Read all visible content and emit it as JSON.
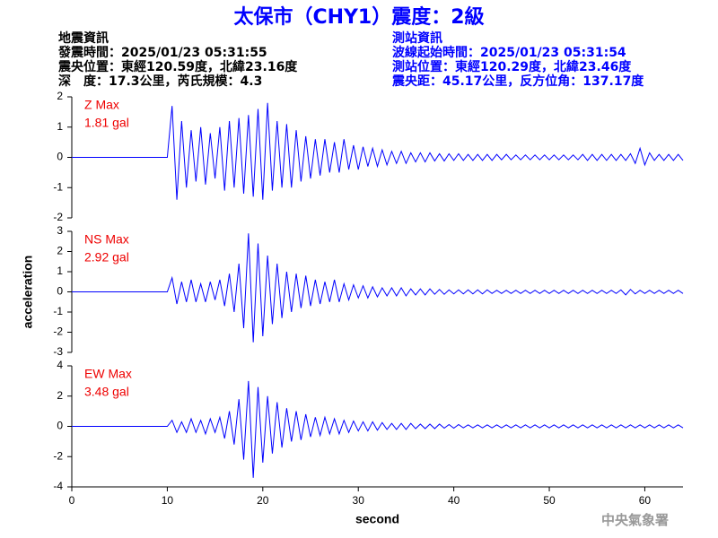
{
  "header": {
    "title": "太保市（CHY1）震度：2級",
    "left": [
      "地震資訊",
      "發震時間：2025/01/23 05:31:55",
      "震央位置：東經120.59度，北緯23.16度",
      "深　度：17.3公里，芮氏規模：4.3"
    ],
    "right": [
      "測站資訊",
      "波線起始時間：2025/01/23 05:31:54",
      "測站位置：東經120.29度，北緯23.46度",
      "震央距：45.17公里，反方位角：137.17度"
    ]
  },
  "footer": "中央氣象署",
  "chart_data": [
    {
      "type": "line",
      "annotations": [
        "Z Max",
        "1.81 gal"
      ],
      "xlim": [
        0,
        64
      ],
      "ylim": [
        -2,
        2
      ],
      "yticks": [
        -2,
        -1,
        0,
        1,
        2
      ],
      "x": [
        0,
        0.5,
        1,
        1.5,
        2,
        2.5,
        3,
        3.5,
        4,
        4.5,
        5,
        5.5,
        6,
        6.5,
        7,
        7.5,
        8,
        8.5,
        9,
        9.5,
        10,
        10.5,
        11,
        11.5,
        12,
        12.5,
        13,
        13.5,
        14,
        14.5,
        15,
        15.5,
        16,
        16.5,
        17,
        17.5,
        18,
        18.5,
        19,
        19.5,
        20,
        20.5,
        21,
        21.5,
        22,
        22.5,
        23,
        23.5,
        24,
        24.5,
        25,
        25.5,
        26,
        26.5,
        27,
        27.5,
        28,
        28.5,
        29,
        29.5,
        30,
        30.5,
        31,
        31.5,
        32,
        32.5,
        33,
        33.5,
        34,
        34.5,
        35,
        35.5,
        36,
        36.5,
        37,
        37.5,
        38,
        38.5,
        39,
        39.5,
        40,
        40.5,
        41,
        41.5,
        42,
        42.5,
        43,
        43.5,
        44,
        44.5,
        45,
        45.5,
        46,
        46.5,
        47,
        47.5,
        48,
        48.5,
        49,
        49.5,
        50,
        50.5,
        51,
        51.5,
        52,
        52.5,
        53,
        53.5,
        54,
        54.5,
        55,
        55.5,
        56,
        56.5,
        57,
        57.5,
        58,
        58.5,
        59,
        59.5,
        60,
        60.5,
        61,
        61.5,
        62,
        62.5,
        63,
        63.5,
        64
      ],
      "series": [
        {
          "color": "#0000ff",
          "values": [
            0,
            0,
            0,
            0,
            0,
            0,
            0,
            0,
            0,
            0,
            0,
            0,
            0,
            0,
            0,
            0,
            0,
            0,
            0,
            0,
            0,
            1.7,
            -1.4,
            1.2,
            -1.0,
            0.9,
            -0.8,
            1.0,
            -0.9,
            0.8,
            -0.7,
            1.0,
            -1.1,
            1.2,
            -1.0,
            1.3,
            -1.2,
            1.4,
            -1.3,
            1.6,
            -1.4,
            1.8,
            -1.1,
            1.2,
            -1.0,
            1.1,
            -1.0,
            0.9,
            -0.8,
            0.7,
            -0.7,
            0.6,
            -0.6,
            0.6,
            -0.5,
            0.5,
            -0.5,
            0.6,
            -0.4,
            0.4,
            -0.4,
            0.35,
            -0.3,
            0.3,
            -0.3,
            0.25,
            -0.25,
            0.2,
            -0.2,
            0.2,
            -0.2,
            0.15,
            -0.15,
            0.15,
            -0.15,
            0.15,
            -0.12,
            0.12,
            -0.12,
            0.12,
            -0.1,
            0.12,
            -0.1,
            0.1,
            -0.1,
            0.1,
            -0.1,
            0.1,
            -0.1,
            0.1,
            -0.08,
            0.1,
            -0.08,
            0.08,
            -0.08,
            0.08,
            -0.08,
            0.08,
            -0.08,
            0.08,
            -0.08,
            0.08,
            -0.08,
            0.08,
            -0.08,
            0.08,
            -0.08,
            0.1,
            -0.1,
            0.1,
            -0.1,
            0.1,
            -0.1,
            0.1,
            -0.1,
            0.1,
            -0.1,
            0.12,
            -0.2,
            0.3,
            -0.25,
            0.15,
            -0.1,
            0.1,
            -0.1,
            0.1,
            -0.1,
            0.1,
            -0.1
          ]
        }
      ]
    },
    {
      "type": "line",
      "annotations": [
        "NS Max",
        "2.92 gal"
      ],
      "ylabel": "acceleration",
      "xlim": [
        0,
        64
      ],
      "ylim": [
        -3,
        3
      ],
      "yticks": [
        -3,
        -2,
        -1,
        0,
        1,
        2,
        3
      ],
      "x": [
        0,
        0.5,
        1,
        1.5,
        2,
        2.5,
        3,
        3.5,
        4,
        4.5,
        5,
        5.5,
        6,
        6.5,
        7,
        7.5,
        8,
        8.5,
        9,
        9.5,
        10,
        10.5,
        11,
        11.5,
        12,
        12.5,
        13,
        13.5,
        14,
        14.5,
        15,
        15.5,
        16,
        16.5,
        17,
        17.5,
        18,
        18.5,
        19,
        19.5,
        20,
        20.5,
        21,
        21.5,
        22,
        22.5,
        23,
        23.5,
        24,
        24.5,
        25,
        25.5,
        26,
        26.5,
        27,
        27.5,
        28,
        28.5,
        29,
        29.5,
        30,
        30.5,
        31,
        31.5,
        32,
        32.5,
        33,
        33.5,
        34,
        34.5,
        35,
        35.5,
        36,
        36.5,
        37,
        37.5,
        38,
        38.5,
        39,
        39.5,
        40,
        40.5,
        41,
        41.5,
        42,
        42.5,
        43,
        43.5,
        44,
        44.5,
        45,
        45.5,
        46,
        46.5,
        47,
        47.5,
        48,
        48.5,
        49,
        49.5,
        50,
        50.5,
        51,
        51.5,
        52,
        52.5,
        53,
        53.5,
        54,
        54.5,
        55,
        55.5,
        56,
        56.5,
        57,
        57.5,
        58,
        58.5,
        59,
        59.5,
        60,
        60.5,
        61,
        61.5,
        62,
        62.5,
        63,
        63.5,
        64
      ],
      "series": [
        {
          "color": "#0000ff",
          "values": [
            0,
            0,
            0,
            0,
            0,
            0,
            0,
            0,
            0,
            0,
            0,
            0,
            0,
            0,
            0,
            0,
            0,
            0,
            0,
            0,
            0,
            0.7,
            -0.6,
            0.5,
            -0.5,
            0.6,
            -0.5,
            0.4,
            -0.5,
            0.5,
            -0.4,
            0.6,
            -0.7,
            0.9,
            -1.0,
            1.4,
            -1.8,
            2.9,
            -2.5,
            2.4,
            -2.2,
            1.8,
            -1.6,
            1.4,
            -1.3,
            1.0,
            -1.0,
            0.9,
            -0.8,
            0.8,
            -0.7,
            0.6,
            -0.6,
            0.5,
            -0.5,
            0.6,
            -0.5,
            0.4,
            -0.4,
            0.35,
            -0.3,
            0.3,
            -0.3,
            0.25,
            -0.25,
            0.2,
            -0.2,
            0.2,
            -0.2,
            0.2,
            -0.2,
            0.15,
            -0.15,
            0.15,
            -0.15,
            0.15,
            -0.12,
            0.12,
            -0.12,
            0.1,
            -0.1,
            0.1,
            -0.1,
            0.1,
            -0.1,
            0.1,
            -0.1,
            0.1,
            -0.08,
            0.08,
            -0.08,
            0.08,
            -0.08,
            0.08,
            -0.08,
            0.08,
            -0.08,
            0.08,
            -0.08,
            0.08,
            -0.08,
            0.08,
            -0.08,
            0.08,
            -0.08,
            0.08,
            -0.08,
            0.08,
            -0.08,
            0.08,
            -0.08,
            0.08,
            -0.08,
            0.08,
            -0.08,
            0.1,
            -0.15,
            0.12,
            -0.1,
            0.08,
            -0.08,
            0.08,
            -0.08,
            0.08,
            -0.08,
            0.08,
            -0.08,
            0.08,
            -0.08
          ]
        }
      ]
    },
    {
      "type": "line",
      "annotations": [
        "EW Max",
        "3.48 gal"
      ],
      "xlabel": "second",
      "xlim": [
        0,
        64
      ],
      "xticks": [
        0,
        10,
        20,
        30,
        40,
        50,
        60
      ],
      "ylim": [
        -4,
        4
      ],
      "yticks": [
        -4,
        -2,
        0,
        2,
        4
      ],
      "x": [
        0,
        0.5,
        1,
        1.5,
        2,
        2.5,
        3,
        3.5,
        4,
        4.5,
        5,
        5.5,
        6,
        6.5,
        7,
        7.5,
        8,
        8.5,
        9,
        9.5,
        10,
        10.5,
        11,
        11.5,
        12,
        12.5,
        13,
        13.5,
        14,
        14.5,
        15,
        15.5,
        16,
        16.5,
        17,
        17.5,
        18,
        18.5,
        19,
        19.5,
        20,
        20.5,
        21,
        21.5,
        22,
        22.5,
        23,
        23.5,
        24,
        24.5,
        25,
        25.5,
        26,
        26.5,
        27,
        27.5,
        28,
        28.5,
        29,
        29.5,
        30,
        30.5,
        31,
        31.5,
        32,
        32.5,
        33,
        33.5,
        34,
        34.5,
        35,
        35.5,
        36,
        36.5,
        37,
        37.5,
        38,
        38.5,
        39,
        39.5,
        40,
        40.5,
        41,
        41.5,
        42,
        42.5,
        43,
        43.5,
        44,
        44.5,
        45,
        45.5,
        46,
        46.5,
        47,
        47.5,
        48,
        48.5,
        49,
        49.5,
        50,
        50.5,
        51,
        51.5,
        52,
        52.5,
        53,
        53.5,
        54,
        54.5,
        55,
        55.5,
        56,
        56.5,
        57,
        57.5,
        58,
        58.5,
        59,
        59.5,
        60,
        60.5,
        61,
        61.5,
        62,
        62.5,
        63,
        63.5,
        64
      ],
      "series": [
        {
          "color": "#0000ff",
          "values": [
            0,
            0,
            0,
            0,
            0,
            0,
            0,
            0,
            0,
            0,
            0,
            0,
            0,
            0,
            0,
            0,
            0,
            0,
            0,
            0,
            0,
            0.4,
            -0.4,
            0.3,
            -0.4,
            0.5,
            -0.4,
            0.4,
            -0.5,
            0.5,
            -0.4,
            0.6,
            -0.8,
            1.0,
            -1.2,
            1.8,
            -2.2,
            3.0,
            -3.4,
            2.6,
            -2.4,
            2.0,
            -1.8,
            1.6,
            -1.4,
            1.2,
            -1.0,
            1.0,
            -0.9,
            0.8,
            -0.7,
            0.6,
            -0.6,
            0.6,
            -0.5,
            0.5,
            -0.5,
            0.4,
            -0.4,
            0.35,
            -0.3,
            0.3,
            -0.3,
            0.3,
            -0.25,
            0.25,
            -0.2,
            0.2,
            -0.2,
            0.2,
            -0.2,
            0.2,
            -0.15,
            0.15,
            -0.15,
            0.15,
            -0.15,
            0.15,
            -0.12,
            0.12,
            -0.12,
            0.12,
            -0.1,
            0.1,
            -0.1,
            0.1,
            -0.1,
            0.1,
            -0.1,
            0.1,
            -0.1,
            0.1,
            -0.1,
            0.1,
            -0.1,
            0.1,
            -0.1,
            0.1,
            -0.1,
            0.1,
            -0.1,
            0.1,
            -0.1,
            0.1,
            -0.1,
            0.1,
            -0.1,
            0.1,
            -0.1,
            0.1,
            -0.1,
            0.1,
            -0.1,
            0.1,
            -0.1,
            0.1,
            -0.1,
            0.1,
            -0.1,
            0.1,
            -0.1,
            0.1,
            -0.1,
            0.1,
            -0.1,
            0.1,
            -0.1,
            0.1,
            -0.1
          ]
        }
      ]
    }
  ]
}
